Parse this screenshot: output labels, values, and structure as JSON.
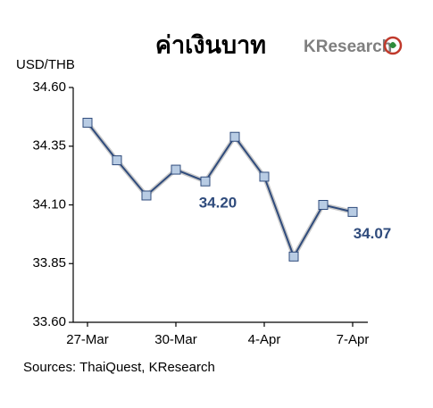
{
  "chart_data": {
    "type": "line",
    "title": "ค่าเงินบาท",
    "brand": "KResearch",
    "y_label": "USD/THB",
    "source": "Sources: ThaiQuest, KResearch",
    "categories": [
      "27-Mar",
      null,
      null,
      "30-Mar",
      null,
      null,
      "4-Apr",
      null,
      null,
      "7-Apr"
    ],
    "series": [
      {
        "color": "#2f4b7c",
        "marker_color": "#b8cce4",
        "values": [
          34.45,
          34.29,
          34.14,
          34.25,
          34.2,
          34.39,
          34.22,
          33.88,
          34.1,
          34.07
        ],
        "value_labels": [
          null,
          null,
          null,
          null,
          "34.20",
          null,
          null,
          null,
          null,
          "34.07"
        ]
      }
    ],
    "ylim": [
      33.6,
      34.6
    ],
    "yticks": [
      {
        "value": 33.6,
        "label": "33.60"
      },
      33.85,
      {
        "value": 34.1,
        "label": "34.10"
      },
      34.35,
      {
        "value": 34.6,
        "label": "34.60"
      }
    ],
    "grid": false
  }
}
